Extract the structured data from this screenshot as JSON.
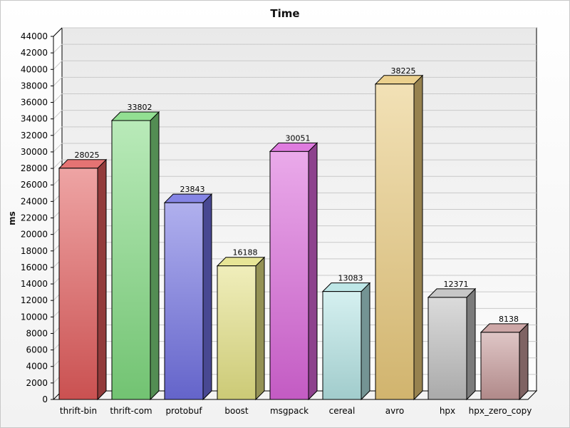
{
  "chart_data": {
    "type": "bar",
    "title": "Time",
    "xlabel": "",
    "ylabel": "ms",
    "ylim": [
      0,
      44000
    ],
    "yticks": [
      0,
      2000,
      4000,
      6000,
      8000,
      10000,
      12000,
      14000,
      16000,
      18000,
      20000,
      22000,
      24000,
      26000,
      28000,
      30000,
      32000,
      34000,
      36000,
      38000,
      40000,
      42000,
      44000
    ],
    "grid": true,
    "categories": [
      "thrift-bin",
      "thrift-com",
      "protobuf",
      "boost",
      "msgpack",
      "cereal",
      "avro",
      "hpx",
      "hpx_zero_copy"
    ],
    "values": [
      28025,
      33802,
      23843,
      16188,
      30051,
      13083,
      38225,
      12371,
      8138
    ],
    "colors": [
      "#e05a5a",
      "#7fd97f",
      "#6f6fe0",
      "#e3e083",
      "#d965d9",
      "#b3e3e3",
      "#e8c87a",
      "#bdbdbd",
      "#c49898"
    ]
  }
}
